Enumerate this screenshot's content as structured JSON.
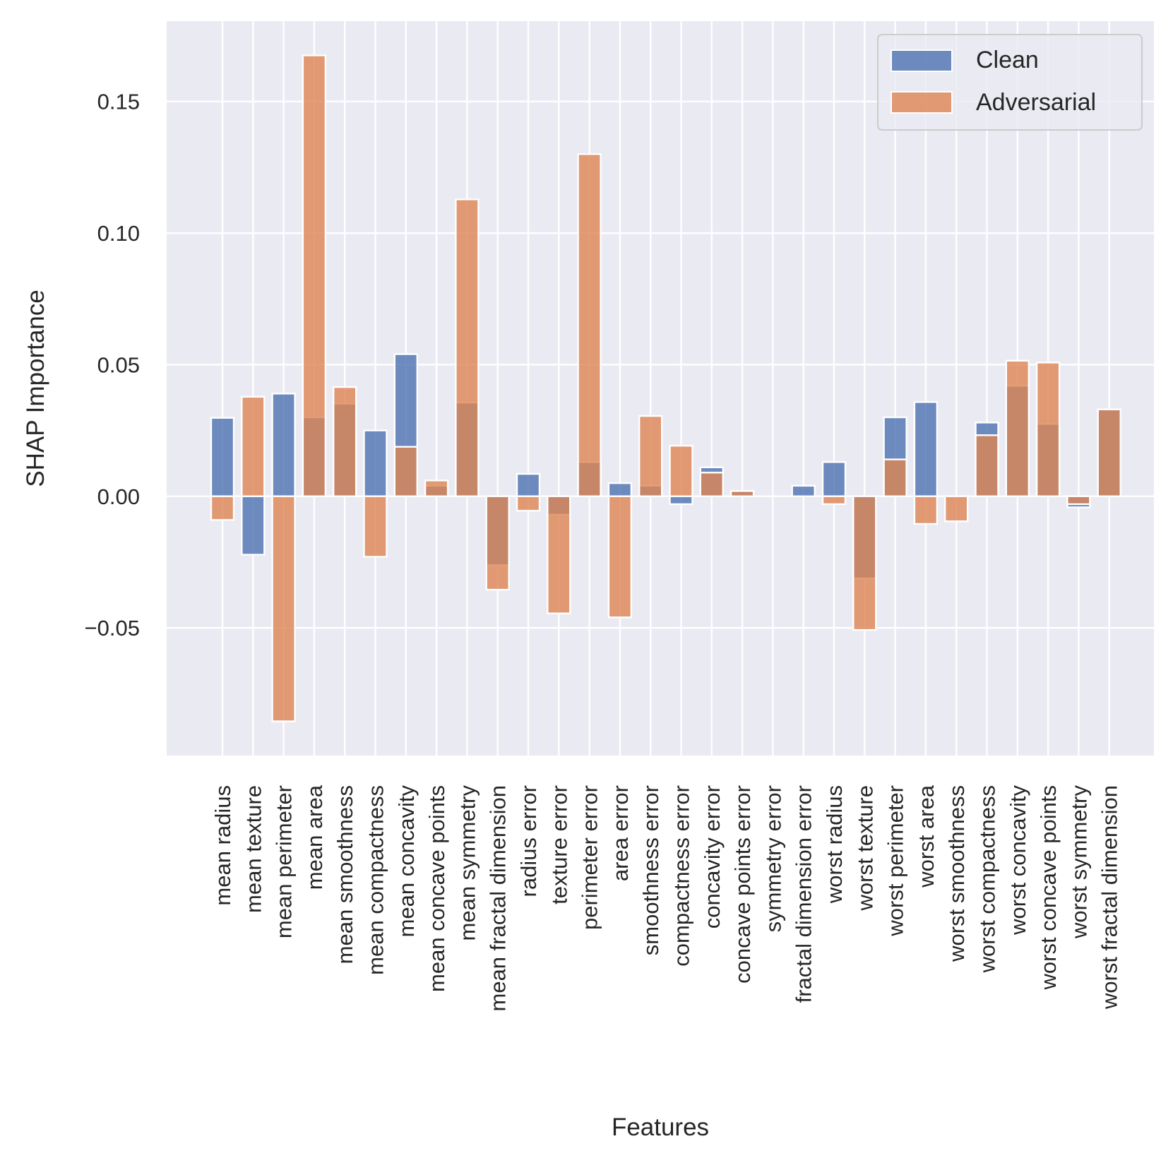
{
  "chart_data": {
    "type": "bar",
    "xlabel": "Features",
    "ylabel": "SHAP Importance",
    "ylim": [
      -0.0985,
      0.1805
    ],
    "yticks": [
      -0.05,
      0.0,
      0.05,
      0.1,
      0.15
    ],
    "ytick_labels": [
      "−0.05",
      "0.00",
      "0.05",
      "0.10",
      "0.15"
    ],
    "grid": true,
    "legend_position": "top-right",
    "categories": [
      "mean radius",
      "mean texture",
      "mean perimeter",
      "mean area",
      "mean smoothness",
      "mean compactness",
      "mean concavity",
      "mean concave points",
      "mean symmetry",
      "mean fractal dimension",
      "radius error",
      "texture error",
      "perimeter error",
      "area error",
      "smoothness error",
      "compactness error",
      "concavity error",
      "concave points error",
      "symmetry error",
      "fractal dimension error",
      "worst radius",
      "worst texture",
      "worst perimeter",
      "worst area",
      "worst smoothness",
      "worst compactness",
      "worst concavity",
      "worst concave points",
      "worst symmetry",
      "worst fractal dimension"
    ],
    "series": [
      {
        "name": "Clean",
        "color": "#4c72b0",
        "values": [
          0.0298,
          -0.0222,
          0.039,
          0.03,
          0.0352,
          0.025,
          0.054,
          0.004,
          0.0356,
          -0.0262,
          0.0085,
          -0.007,
          0.013,
          0.005,
          0.004,
          -0.003,
          0.011,
          0.002,
          0.0,
          0.004,
          0.013,
          -0.0312,
          0.03,
          0.0358,
          0.0,
          0.028,
          0.042,
          0.0275,
          -0.0042,
          0.033
        ]
      },
      {
        "name": "Adversarial",
        "color": "#dd8452",
        "values": [
          -0.009,
          0.0378,
          -0.0855,
          0.1675,
          0.0415,
          -0.023,
          0.0188,
          0.006,
          0.1128,
          -0.0355,
          -0.0055,
          -0.0445,
          0.13,
          -0.046,
          0.0305,
          0.0192,
          0.009,
          0.002,
          0.0,
          0.0,
          -0.003,
          -0.0508,
          0.014,
          -0.0105,
          -0.0095,
          0.0232,
          0.0515,
          0.0508,
          -0.003,
          0.033
        ]
      }
    ]
  }
}
